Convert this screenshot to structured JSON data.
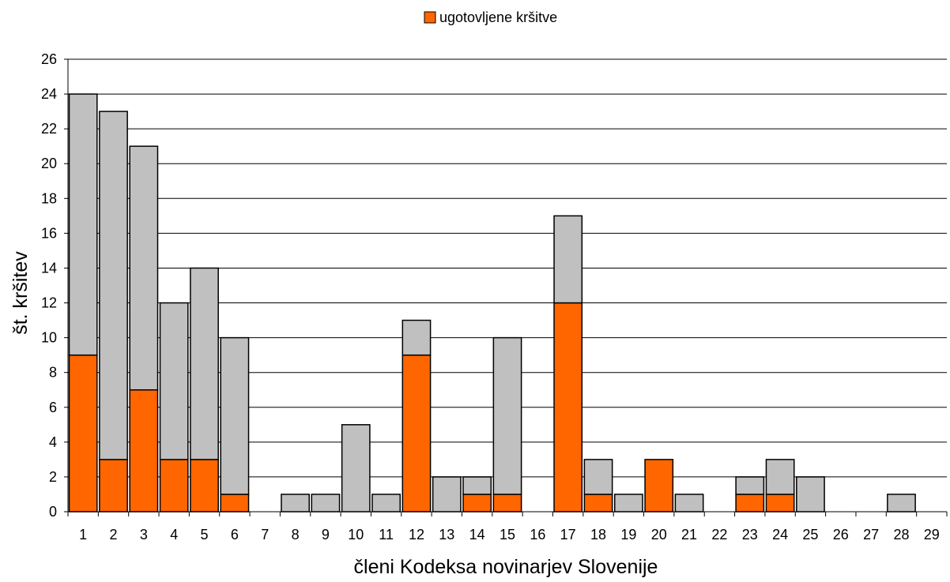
{
  "chart_data": {
    "type": "bar",
    "stacked": true,
    "categories": [
      "1",
      "2",
      "3",
      "4",
      "5",
      "6",
      "7",
      "8",
      "9",
      "10",
      "11",
      "12",
      "13",
      "14",
      "15",
      "16",
      "17",
      "18",
      "19",
      "20",
      "21",
      "22",
      "23",
      "24",
      "25",
      "26",
      "27",
      "28",
      "29"
    ],
    "series": [
      {
        "name": "ugotovljene kršitve",
        "color": "#ff6600",
        "values": [
          9,
          3,
          7,
          3,
          3,
          1,
          0,
          0,
          0,
          0,
          0,
          9,
          0,
          1,
          1,
          0,
          12,
          1,
          0,
          3,
          0,
          0,
          1,
          1,
          0,
          0,
          0,
          0,
          0
        ]
      },
      {
        "name": "",
        "color": "#c0c0c0",
        "values": [
          15,
          20,
          14,
          9,
          11,
          9,
          0,
          1,
          1,
          5,
          1,
          2,
          2,
          1,
          9,
          0,
          5,
          2,
          1,
          0,
          1,
          0,
          1,
          2,
          2,
          0,
          0,
          1,
          0
        ]
      }
    ],
    "ylim": [
      0,
      26
    ],
    "yticks": [
      0,
      2,
      4,
      6,
      8,
      10,
      12,
      14,
      16,
      18,
      20,
      22,
      24,
      26
    ],
    "xlabel": "členi Kodeksa novinarjev Slovenije",
    "ylabel": "št. kršitev",
    "grid": "horizontal",
    "legend": "top-center"
  }
}
